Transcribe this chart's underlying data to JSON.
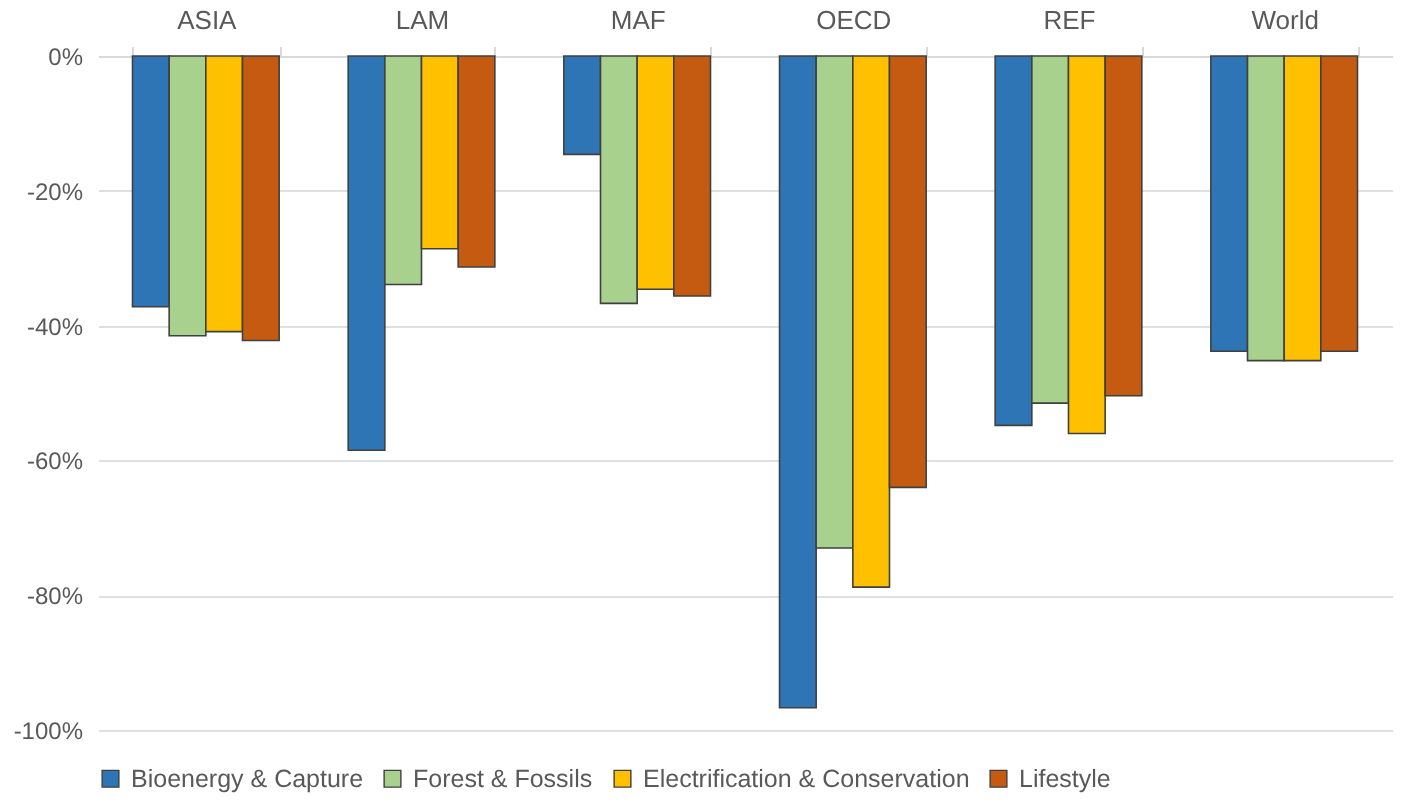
{
  "chart_data": {
    "type": "bar",
    "categories": [
      "ASIA",
      "LAM",
      "MAF",
      "OECD",
      "REF",
      "World"
    ],
    "series": [
      {
        "name": "Bioenergy & Capture",
        "color": "#2e75b6",
        "values": [
          -37.2,
          -58.5,
          -14.6,
          -96.7,
          -54.8,
          -43.8
        ]
      },
      {
        "name": "Forest & Fossils",
        "color": "#a9d18e",
        "values": [
          -41.5,
          -33.9,
          -36.7,
          -73.0,
          -51.5,
          -45.2
        ]
      },
      {
        "name": "Electrification & Conservation",
        "color": "#ffc000",
        "values": [
          -40.9,
          -28.6,
          -34.6,
          -78.8,
          -56.0,
          -45.2
        ]
      },
      {
        "name": "Lifestyle",
        "color": "#c55a11",
        "values": [
          -42.2,
          -31.3,
          -35.6,
          -64.0,
          -50.4,
          -43.8
        ]
      }
    ],
    "ylim": [
      -100,
      0
    ],
    "yticks": [
      {
        "value": 0,
        "label": "0%"
      },
      {
        "value": -20,
        "label": "-20%"
      },
      {
        "value": -40,
        "label": "-40%"
      },
      {
        "value": -60,
        "label": "-60%"
      },
      {
        "value": -80,
        "label": "-80%"
      },
      {
        "value": -100,
        "label": "-100%"
      }
    ],
    "grid": "y",
    "legend": "bottom"
  }
}
